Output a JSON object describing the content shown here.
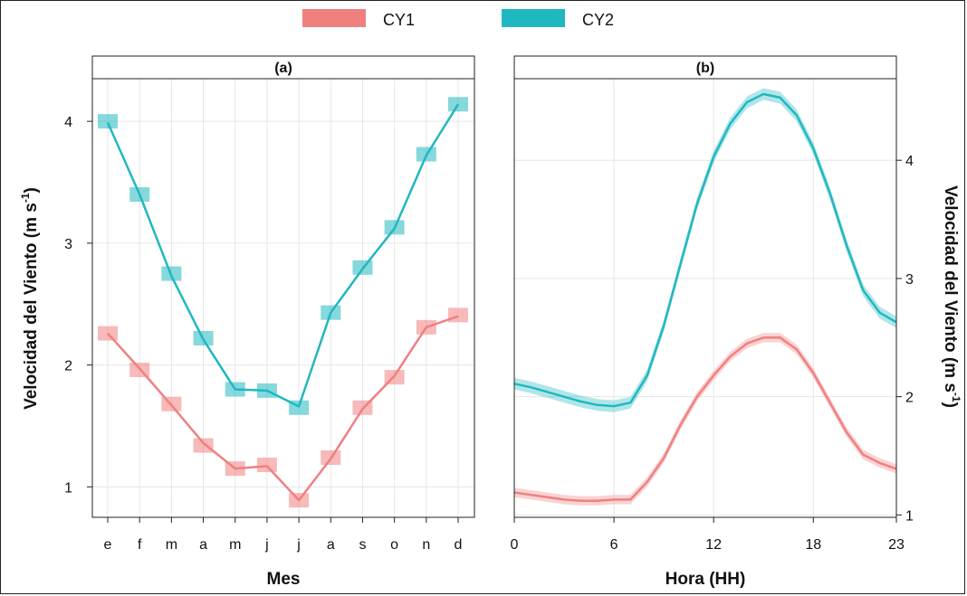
{
  "colors": {
    "CY1": "#f08080",
    "CY2": "#20b8c0",
    "grid": "#e6e6e6",
    "strip": "#ffffff"
  },
  "legend": {
    "items": [
      {
        "name": "CY1",
        "color": "#f08080"
      },
      {
        "name": "CY2",
        "color": "#20b8c0"
      }
    ],
    "placement": "top"
  },
  "chart_data": [
    {
      "panel": "(a)",
      "type": "line",
      "xlabel": "Mes",
      "ylabel": "Velocidad del Viento (m s",
      "ylabel_sup": "-1",
      "ylabel_close": ")",
      "categories": [
        "e",
        "f",
        "m",
        "a",
        "m",
        "j",
        "j",
        "a",
        "s",
        "o",
        "n",
        "d"
      ],
      "ylim": [
        0.75,
        4.35
      ],
      "yticks": [
        1,
        2,
        3,
        4
      ],
      "grid": true,
      "series": [
        {
          "name": "CY1",
          "line": [
            2.26,
            1.97,
            1.67,
            1.36,
            1.15,
            1.17,
            0.89,
            1.23,
            1.64,
            1.91,
            2.31,
            2.4
          ],
          "markers": [
            2.26,
            1.96,
            1.68,
            1.34,
            1.15,
            1.18,
            0.89,
            1.24,
            1.65,
            1.9,
            2.31,
            2.41
          ]
        },
        {
          "name": "CY2",
          "line": [
            3.99,
            3.4,
            2.73,
            2.21,
            1.8,
            1.79,
            1.66,
            2.43,
            2.79,
            3.12,
            3.72,
            4.14
          ],
          "markers": [
            4.0,
            3.4,
            2.75,
            2.22,
            1.8,
            1.79,
            1.65,
            2.43,
            2.8,
            3.13,
            3.73,
            4.14
          ]
        }
      ]
    },
    {
      "panel": "(b)",
      "type": "line",
      "xlabel": "Hora (HH)",
      "ylabel": "Velocidad del Viento (m s",
      "ylabel_sup": "-1",
      "ylabel_close": ")",
      "xlim": [
        0,
        23
      ],
      "xticks": [
        0,
        6,
        12,
        18,
        23
      ],
      "ylim": [
        0.98,
        4.69
      ],
      "yticks": [
        1,
        2,
        3,
        4
      ],
      "grid": true,
      "x": [
        0,
        1,
        2,
        3,
        4,
        5,
        6,
        7,
        8,
        9,
        10,
        11,
        12,
        13,
        14,
        15,
        16,
        17,
        18,
        19,
        20,
        21,
        22,
        23
      ],
      "series": [
        {
          "name": "CY1",
          "y": [
            1.19,
            1.17,
            1.15,
            1.13,
            1.12,
            1.12,
            1.13,
            1.13,
            1.28,
            1.48,
            1.76,
            2.0,
            2.18,
            2.34,
            2.45,
            2.5,
            2.5,
            2.4,
            2.2,
            1.95,
            1.7,
            1.51,
            1.44,
            1.39
          ],
          "band": 0.04
        },
        {
          "name": "CY2",
          "y": [
            2.11,
            2.08,
            2.04,
            2.0,
            1.96,
            1.93,
            1.92,
            1.95,
            2.18,
            2.6,
            3.12,
            3.63,
            4.03,
            4.31,
            4.49,
            4.56,
            4.53,
            4.38,
            4.1,
            3.72,
            3.28,
            2.9,
            2.71,
            2.63
          ],
          "band": 0.05
        }
      ]
    }
  ]
}
